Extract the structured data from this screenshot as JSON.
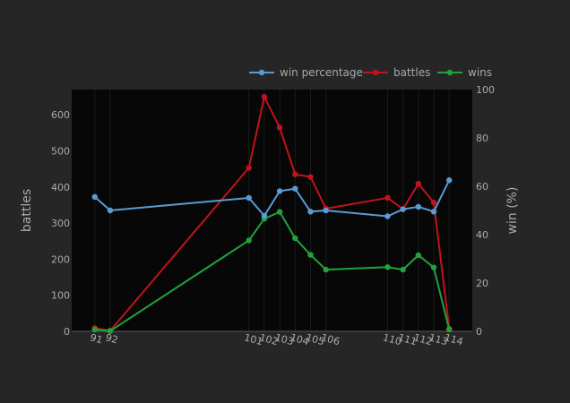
{
  "chart_data": {
    "type": "line",
    "x": [
      91,
      92,
      101,
      102,
      103,
      104,
      105,
      106,
      110,
      111,
      112,
      113,
      114
    ],
    "x_tick_labels": [
      "91",
      "92",
      "101",
      "102",
      "103",
      "104",
      "105",
      "106",
      "110",
      "111",
      "112",
      "113",
      "114"
    ],
    "y_left_label": "battles",
    "y_right_label": "win (%)",
    "y_left_range": [
      0,
      670
    ],
    "y_right_range": [
      0,
      100
    ],
    "y_left_ticks": [
      0,
      100,
      200,
      300,
      400,
      500,
      600
    ],
    "y_right_ticks": [
      0,
      20,
      40,
      60,
      80,
      100
    ],
    "legend_position": "top-right",
    "grid": "vertical",
    "series": [
      {
        "name": "win percentage",
        "axis": "right",
        "color": "#5b9bd5",
        "values": [
          55.6,
          50.0,
          55.2,
          47.8,
          58.0,
          59.0,
          49.5,
          50.0,
          47.6,
          50.5,
          51.5,
          49.5,
          62.5
        ]
      },
      {
        "name": "battles",
        "axis": "left",
        "color": "#c0141c",
        "values": [
          9,
          2,
          453,
          650,
          565,
          435,
          428,
          340,
          370,
          339,
          409,
          357,
          8
        ]
      },
      {
        "name": "wins",
        "axis": "left",
        "color": "#1fa33a",
        "values": [
          5,
          1,
          252,
          312,
          331,
          258,
          212,
          171,
          178,
          171,
          211,
          177,
          5
        ]
      }
    ]
  }
}
